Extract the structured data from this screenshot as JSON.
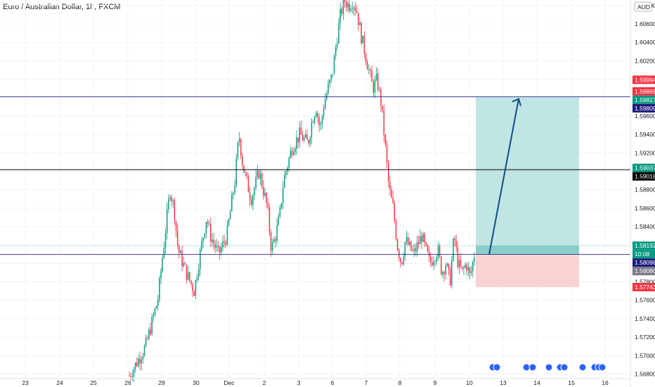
{
  "symbol_title": "Euro / Australian Dollar, 1h, FXCM",
  "currency": "AUD",
  "chart_data": {
    "type": "candlestick",
    "title": "Euro / Australian Dollar, 1h, FXCM",
    "ylim": [
      1.5675,
      1.6086
    ],
    "y_ticks": [
      "1.56800",
      "1.57000",
      "1.57200",
      "1.57400",
      "1.57600",
      "1.57800",
      "1.58000",
      "1.58200",
      "1.58400",
      "1.58600",
      "1.58800",
      "1.59000",
      "1.59200",
      "1.59400",
      "1.59600",
      "1.59800",
      "1.60000",
      "1.60200",
      "1.60400",
      "1.60600",
      "1.60800"
    ],
    "x_ticks": [
      "23",
      "24",
      "25",
      "26",
      "29",
      "30",
      "Dec",
      "2",
      "3",
      "6",
      "7",
      "8",
      "9",
      "10",
      "13",
      "14",
      "15",
      "16"
    ],
    "price_path": [
      {
        "t": 0,
        "p": 1.5678
      },
      {
        "t": 4,
        "p": 1.571
      },
      {
        "t": 7,
        "p": 1.576
      },
      {
        "t": 9,
        "p": 1.584
      },
      {
        "t": 10,
        "p": 1.588
      },
      {
        "t": 11,
        "p": 1.586
      },
      {
        "t": 12,
        "p": 1.5815
      },
      {
        "t": 14,
        "p": 1.579
      },
      {
        "t": 16,
        "p": 1.577
      },
      {
        "t": 17,
        "p": 1.58
      },
      {
        "t": 19,
        "p": 1.585
      },
      {
        "t": 20,
        "p": 1.583
      },
      {
        "t": 22,
        "p": 1.581
      },
      {
        "t": 24,
        "p": 1.583
      },
      {
        "t": 26,
        "p": 1.589
      },
      {
        "t": 27,
        "p": 1.594
      },
      {
        "t": 28,
        "p": 1.5905
      },
      {
        "t": 30,
        "p": 1.587
      },
      {
        "t": 32,
        "p": 1.59
      },
      {
        "t": 34,
        "p": 1.586
      },
      {
        "t": 35,
        "p": 1.5815
      },
      {
        "t": 36,
        "p": 1.583
      },
      {
        "t": 37,
        "p": 1.585
      },
      {
        "t": 38,
        "p": 1.589
      },
      {
        "t": 40,
        "p": 1.5925
      },
      {
        "t": 42,
        "p": 1.594
      },
      {
        "t": 44,
        "p": 1.593
      },
      {
        "t": 45,
        "p": 1.5955
      },
      {
        "t": 46,
        "p": 1.597
      },
      {
        "t": 47,
        "p": 1.5945
      },
      {
        "t": 48,
        "p": 1.5975
      },
      {
        "t": 50,
        "p": 1.6005
      },
      {
        "t": 51,
        "p": 1.604
      },
      {
        "t": 52,
        "p": 1.607
      },
      {
        "t": 53,
        "p": 1.6086
      },
      {
        "t": 54,
        "p": 1.608
      },
      {
        "t": 55,
        "p": 1.6085
      },
      {
        "t": 56,
        "p": 1.6075
      },
      {
        "t": 57,
        "p": 1.605
      },
      {
        "t": 58,
        "p": 1.603
      },
      {
        "t": 59,
        "p": 1.601
      },
      {
        "t": 60,
        "p": 1.599
      },
      {
        "t": 61,
        "p": 1.6
      },
      {
        "t": 62,
        "p": 1.5975
      },
      {
        "t": 63,
        "p": 1.593
      },
      {
        "t": 64,
        "p": 1.588
      },
      {
        "t": 65,
        "p": 1.586
      },
      {
        "t": 66,
        "p": 1.582
      },
      {
        "t": 67,
        "p": 1.58
      },
      {
        "t": 68,
        "p": 1.5825
      },
      {
        "t": 70,
        "p": 1.581
      },
      {
        "t": 72,
        "p": 1.583
      },
      {
        "t": 74,
        "p": 1.58
      },
      {
        "t": 76,
        "p": 1.5815
      },
      {
        "t": 77,
        "p": 1.579
      },
      {
        "t": 78,
        "p": 1.58
      },
      {
        "t": 79,
        "p": 1.578
      },
      {
        "t": 80,
        "p": 1.583
      },
      {
        "t": 81,
        "p": 1.58
      },
      {
        "t": 82,
        "p": 1.579
      },
      {
        "t": 83,
        "p": 1.58
      },
      {
        "t": 84,
        "p": 1.5785
      },
      {
        "t": 85,
        "p": 1.581
      }
    ],
    "horizontal_lines": [
      {
        "price": 1.59809,
        "color": "#2a2e8f"
      },
      {
        "price": 1.59018,
        "color": "#000000"
      },
      {
        "price": 1.58098,
        "color": "#2a2e8f"
      }
    ],
    "position_tool": {
      "entry": 1.58098,
      "target": 1.59809,
      "stop": 1.57743,
      "current": 1.58192,
      "profit_color": "#b2dfdb",
      "loss_color": "#f8c8c8"
    },
    "price_labels": [
      {
        "text": "1.59994",
        "price": 1.59994,
        "color": "#f23645"
      },
      {
        "text": "1.59868",
        "price": 1.59868,
        "color": "#f23645"
      },
      {
        "text": "1.59827",
        "price": 1.59827,
        "color": "#089981"
      },
      {
        "text": "1.59809",
        "price": 1.59809,
        "color": "#1e1b7a"
      },
      {
        "text": "1.59037",
        "price": 1.59037,
        "color": "#089981"
      },
      {
        "text": "1.59018",
        "price": 1.59018,
        "color": "#000000"
      },
      {
        "text": "1.58192",
        "price": 1.58192,
        "color": "#089981"
      },
      {
        "text": "10:08",
        "price": 1.58148,
        "color": "#089981"
      },
      {
        "text": "1.58098",
        "price": 1.58098,
        "color": "#1e1b7a"
      },
      {
        "text": "1.58080",
        "price": 1.5803,
        "color": "#787b86"
      },
      {
        "text": "1.57743",
        "price": 1.57743,
        "color": "#f23645"
      }
    ]
  }
}
